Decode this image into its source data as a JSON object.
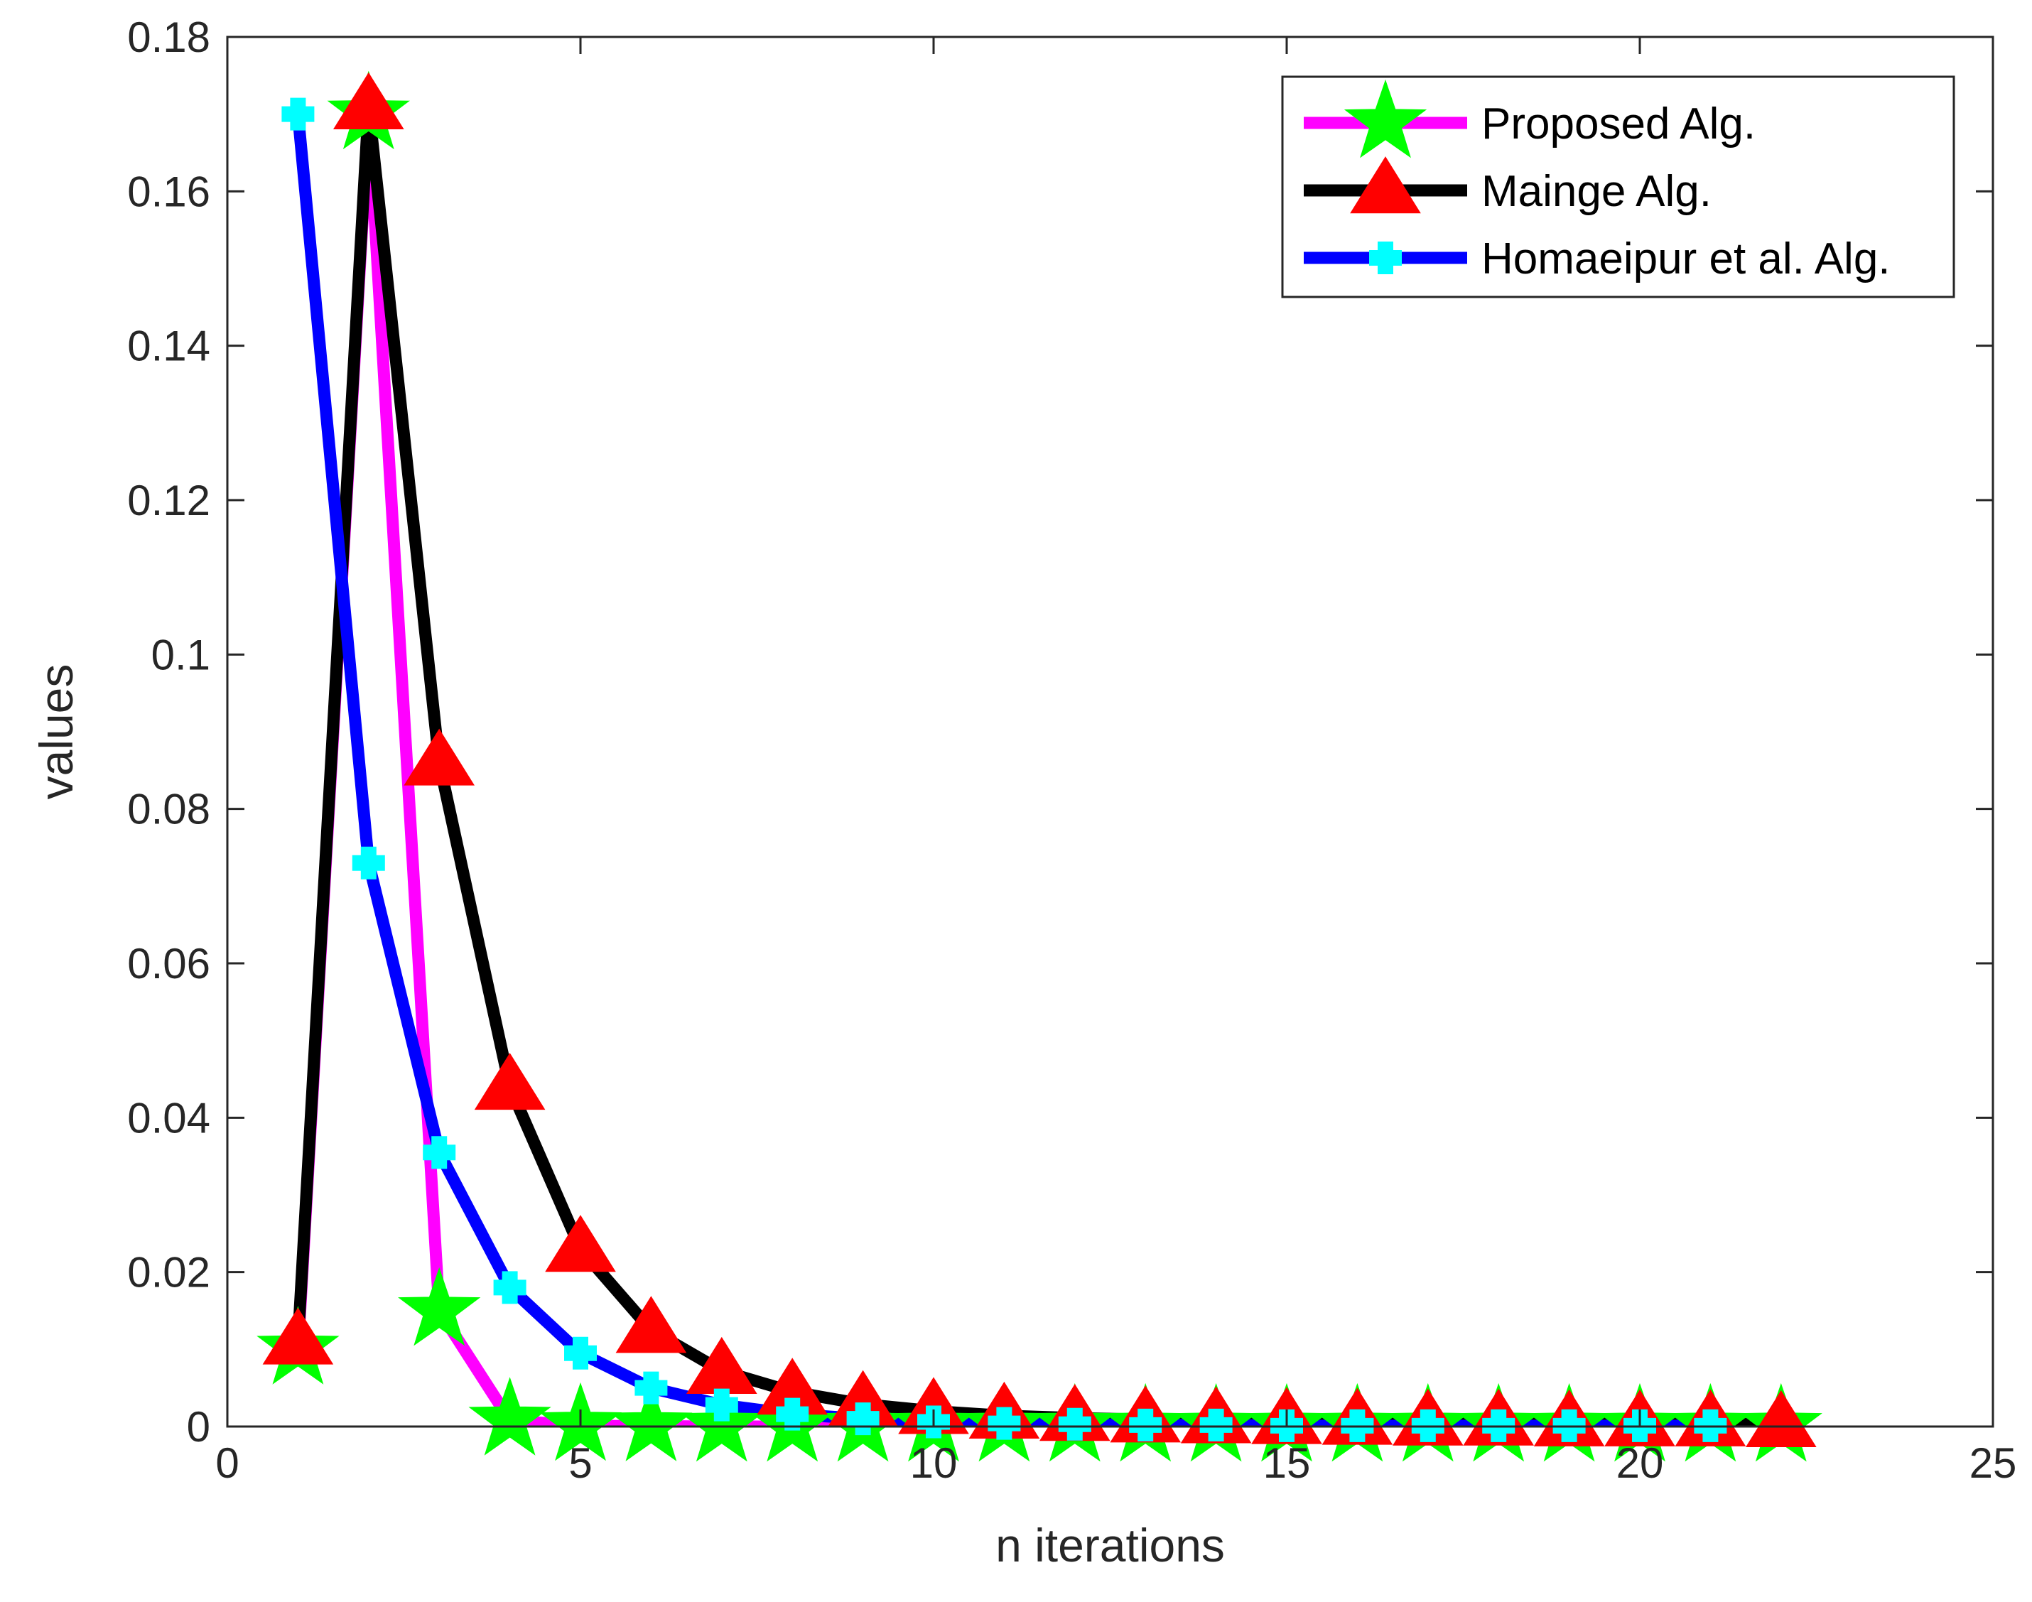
{
  "chart_data": {
    "type": "line",
    "title": "",
    "xlabel": "n iterations",
    "ylabel": "values",
    "xlim": [
      0,
      25
    ],
    "ylim": [
      0,
      0.18
    ],
    "xticks": [
      0,
      5,
      10,
      15,
      20,
      25
    ],
    "xtick_labels": [
      "0",
      "5",
      "10",
      "15",
      "20",
      "25"
    ],
    "yticks": [
      0,
      0.02,
      0.04,
      0.06,
      0.08,
      0.1,
      0.12,
      0.14,
      0.16,
      0.18
    ],
    "ytick_labels": [
      "0",
      "0.02",
      "0.04",
      "0.06",
      "0.08",
      "0.1",
      "0.12",
      "0.14",
      "0.16",
      "0.18"
    ],
    "grid": false,
    "legend_position": "top-right",
    "series": [
      {
        "name": "Proposed Alg.",
        "line_color": "#ff00ff",
        "marker": "star",
        "marker_color": "#00ff00",
        "x": [
          1,
          2,
          3,
          4,
          5,
          6,
          7,
          8,
          9,
          10,
          11,
          12,
          13,
          14,
          15,
          16,
          17,
          18,
          19,
          20,
          21,
          22
        ],
        "y": [
          0.01,
          0.17,
          0.015,
          0.0008,
          0.0001,
          5e-05,
          0,
          0,
          0,
          0,
          0,
          0,
          0,
          0,
          0,
          0,
          0,
          0,
          0,
          0,
          0,
          0
        ]
      },
      {
        "name": "Mainge Alg.",
        "line_color": "#000000",
        "marker": "triangle",
        "marker_color": "#ff0000",
        "x": [
          1,
          2,
          3,
          4,
          5,
          6,
          7,
          8,
          9,
          10,
          11,
          12,
          13,
          14,
          15,
          16,
          17,
          18,
          19,
          20,
          21,
          22
        ],
        "y": [
          0.011,
          0.171,
          0.086,
          0.044,
          0.023,
          0.0125,
          0.0072,
          0.0045,
          0.0029,
          0.002,
          0.0014,
          0.0011,
          0.0009,
          0.0008,
          0.0007,
          0.0006,
          0.0005,
          0.0005,
          0.0004,
          0.0004,
          0.0004,
          0.0003
        ]
      },
      {
        "name": "Homaeipur et al. Alg.",
        "line_color": "#0000ff",
        "marker": "plus-square",
        "marker_color": "#00ffff",
        "x": [
          1,
          2,
          3,
          4,
          5,
          6,
          7,
          8,
          9,
          10,
          11,
          12,
          13,
          14,
          15,
          16,
          17,
          18,
          19,
          20,
          21
        ],
        "y": [
          0.17,
          0.073,
          0.0355,
          0.018,
          0.0095,
          0.005,
          0.0028,
          0.0016,
          0.001,
          0.0006,
          0.0004,
          0.0003,
          0.0002,
          0.0002,
          0.0001,
          0.0001,
          0.0001,
          0.0001,
          0.0001,
          0.0001,
          0.0001
        ]
      }
    ]
  }
}
